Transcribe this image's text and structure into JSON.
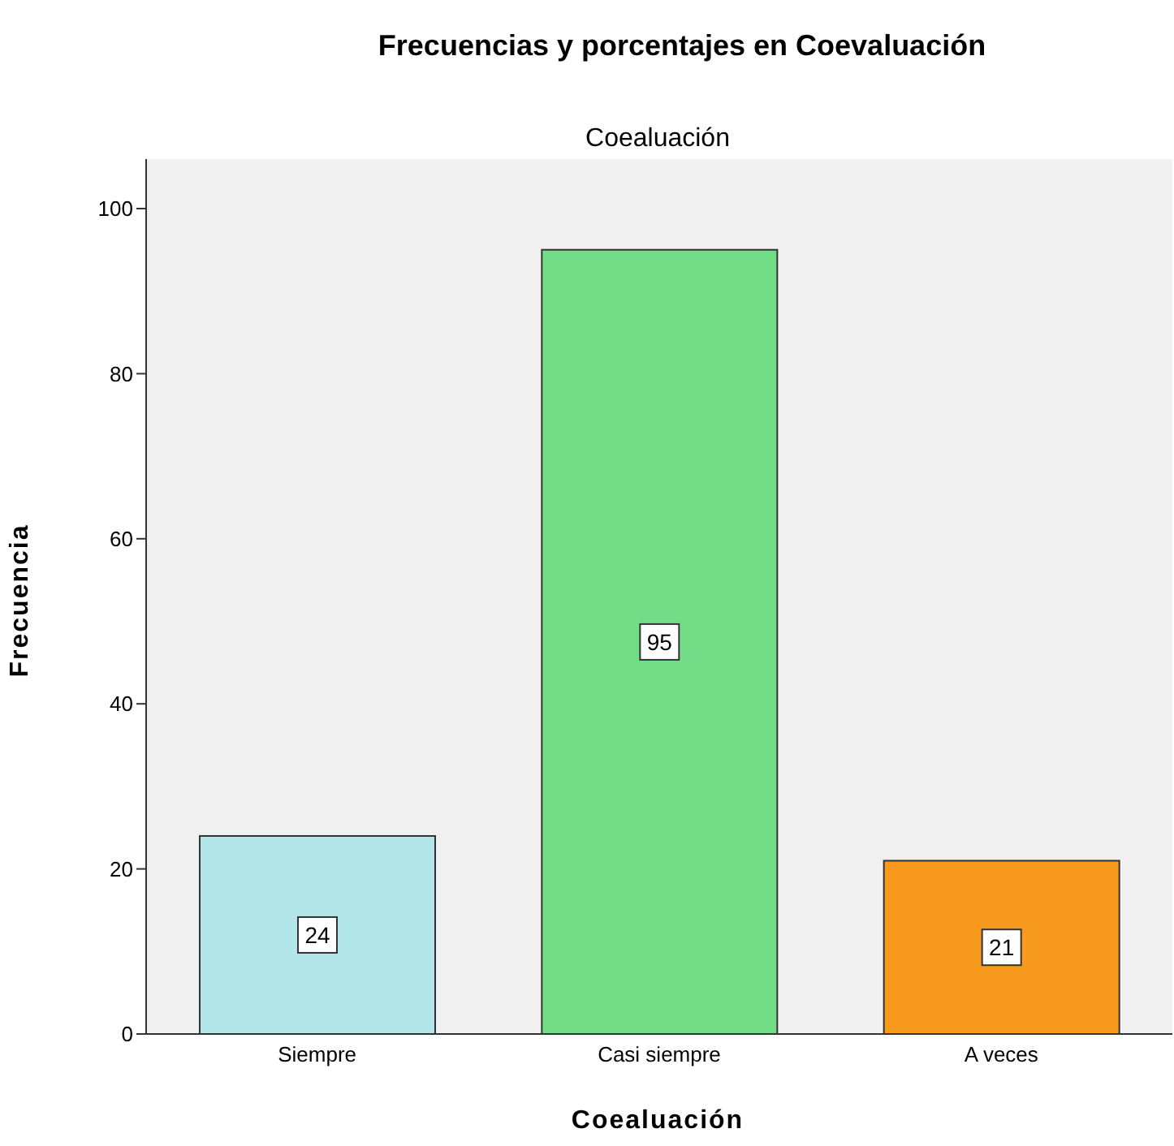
{
  "chart_data": {
    "type": "bar",
    "title": "Frecuencias y porcentajes en Coevaluación",
    "subtitle": "Coealuación",
    "xlabel": "Coealuación",
    "ylabel": "Frecuencia",
    "categories": [
      "Siempre",
      "Casi siempre",
      "A veces"
    ],
    "values": [
      24,
      95,
      21
    ],
    "colors": [
      "#b3e6e8",
      "#72dd86",
      "#f79a1e"
    ],
    "ylim": [
      0,
      106
    ],
    "yticks": [
      0,
      20,
      40,
      60,
      80,
      100
    ],
    "data_labels": true,
    "grid": false,
    "legend": false
  }
}
